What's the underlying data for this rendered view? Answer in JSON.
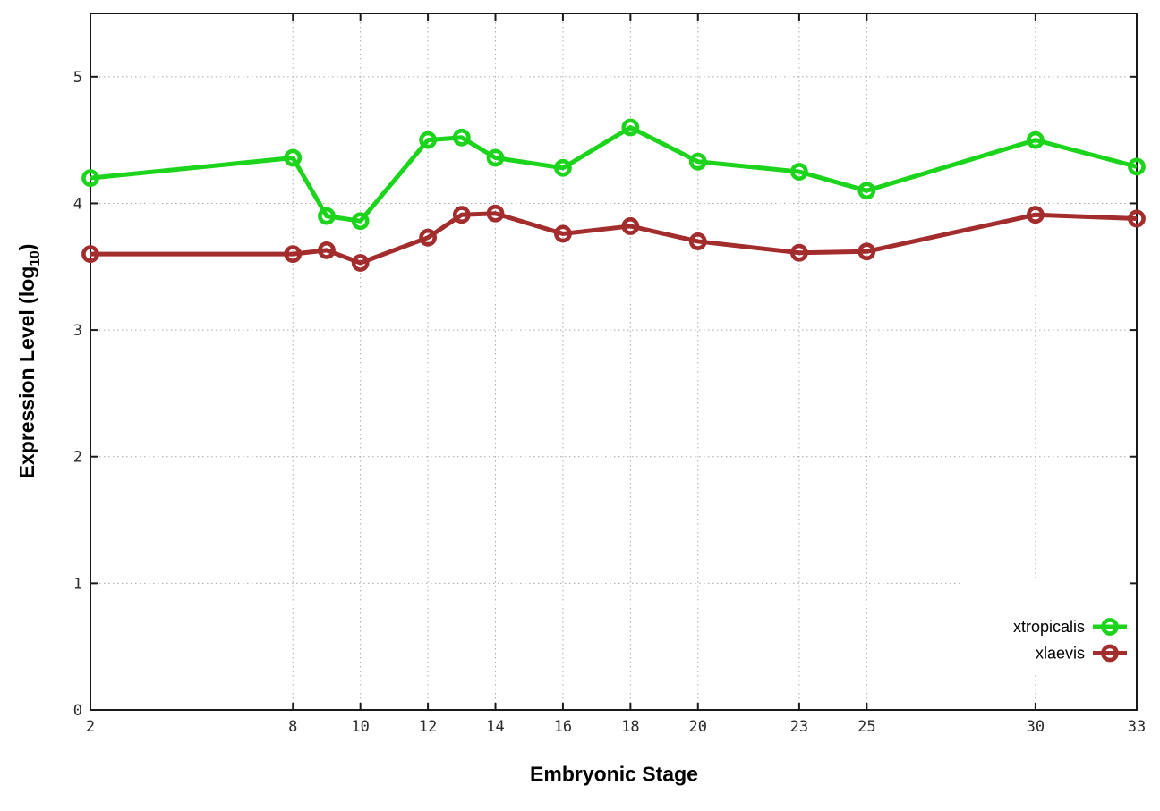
{
  "labels": {
    "xlabel": "Embryonic Stage",
    "ylabel_pre": "Expression Level (log",
    "ylabel_sub": "10",
    "ylabel_post": ")"
  },
  "chart_data": {
    "type": "line",
    "title": "",
    "xlabel": "Embryonic Stage",
    "ylabel": "Expression Level (log10)",
    "xlim": [
      2,
      33
    ],
    "ylim": [
      0,
      5.5
    ],
    "x_ticks": [
      2,
      8,
      10,
      12,
      14,
      16,
      18,
      20,
      23,
      25,
      30,
      33
    ],
    "y_ticks": [
      0,
      1,
      2,
      3,
      4,
      5
    ],
    "grid": true,
    "grid_color": "#a9a9a9",
    "border_color": "#1a1a1a",
    "legend_position": "bottom-right",
    "x": [
      2,
      8,
      9,
      10,
      12,
      13,
      14,
      16,
      18,
      20,
      23,
      25,
      30,
      33
    ],
    "series": [
      {
        "name": "xtropicalis",
        "color": "#1bd41b",
        "values": [
          4.2,
          4.36,
          3.9,
          3.86,
          4.5,
          4.52,
          4.36,
          4.28,
          4.6,
          4.33,
          4.25,
          4.1,
          4.5,
          4.29
        ]
      },
      {
        "name": "xlaevis",
        "color": "#a32c2c",
        "values": [
          3.6,
          3.6,
          3.63,
          3.53,
          3.73,
          3.91,
          3.92,
          3.76,
          3.82,
          3.7,
          3.61,
          3.62,
          3.91,
          3.88
        ]
      }
    ]
  }
}
